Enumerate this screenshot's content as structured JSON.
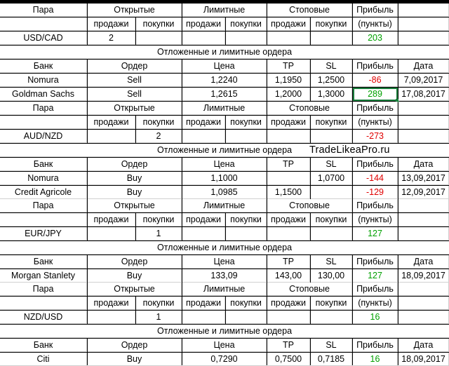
{
  "headers": {
    "pair": "Пара",
    "open": "Открытые",
    "limit": "Лимитные",
    "stop": "Стоповые",
    "profit": "Прибыль",
    "points": "(пункты)",
    "sells": "продажи",
    "buys": "покупки",
    "pending": "Отложенные и лимитные ордера",
    "bank": "Банк",
    "order": "Ордер",
    "price": "Цена",
    "tp": "TP",
    "sl": "SL",
    "date": "Дата"
  },
  "watermark": "TradeLikeaPro.ru",
  "blocks": [
    {
      "pair": "USD/CAD",
      "open_sells": "2",
      "open_buys": "",
      "profit": "203",
      "orders": [
        {
          "bank": "Nomura",
          "order": "Sell",
          "price": "1,2240",
          "tp": "1,1950",
          "sl": "1,2500",
          "profit": "-86",
          "date": "7,09,2017"
        },
        {
          "bank": "Goldman Sachs",
          "order": "Sell",
          "price": "1,2615",
          "tp": "1,2000",
          "sl": "1,3000",
          "profit": "289",
          "date": "17,08,2017"
        }
      ]
    },
    {
      "pair": "AUD/NZD",
      "open_sells": "",
      "open_buys": "2",
      "profit": "-273",
      "orders": [
        {
          "bank": "Nomura",
          "order": "Buy",
          "price": "1,1000",
          "tp": "",
          "sl": "1,0700",
          "profit": "-144",
          "date": "13,09,2017"
        },
        {
          "bank": "Credit Agricole",
          "order": "Buy",
          "price": "1,0985",
          "tp": "1,1500",
          "sl": "",
          "profit": "-129",
          "date": "12,09,2017"
        }
      ]
    },
    {
      "pair": "EUR/JPY",
      "open_sells": "",
      "open_buys": "1",
      "profit": "127",
      "orders": [
        {
          "bank": "Morgan Stanlety",
          "order": "Buy",
          "price": "133,09",
          "tp": "143,00",
          "sl": "130,00",
          "profit": "127",
          "date": "18,09,2017"
        }
      ]
    },
    {
      "pair": "NZD/USD",
      "open_sells": "",
      "open_buys": "1",
      "profit": "16",
      "orders": [
        {
          "bank": "Citi",
          "order": "Buy",
          "price": "0,7290",
          "tp": "0,7500",
          "sl": "0,7185",
          "profit": "16",
          "date": "18,09,2017"
        }
      ]
    }
  ]
}
